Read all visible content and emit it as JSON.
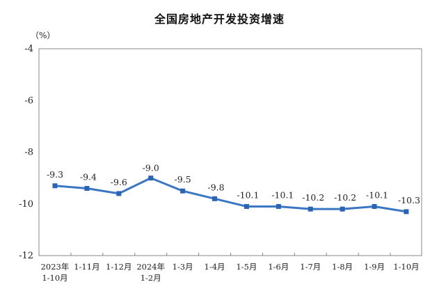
{
  "chart_data": {
    "type": "line",
    "title": "全国房地产开发投资增速",
    "ylabel": "（%）",
    "xlabel": "",
    "categories": [
      "2023年\n1-10月",
      "1-11月",
      "1-12月",
      "2024年\n1-2月",
      "1-3月",
      "1-4月",
      "1-5月",
      "1-6月",
      "1-7月",
      "1-8月",
      "1-9月",
      "1-10月"
    ],
    "series": [
      {
        "values": [
          -9.3,
          -9.4,
          -9.6,
          -9.0,
          -9.5,
          -9.8,
          -10.1,
          -10.1,
          -10.2,
          -10.2,
          -10.1,
          -10.3
        ],
        "data_labels": [
          "-9.3",
          "-9.4",
          "-9.6",
          "-9.0",
          "-9.5",
          "-9.8",
          "-10.1",
          "-10.1",
          "-10.2",
          "-10.2",
          "-10.1",
          "-10.3"
        ]
      }
    ],
    "ylim": [
      -12,
      -4
    ],
    "yticks": [
      -4,
      -6,
      -8,
      -10,
      -12
    ],
    "ytick_labels": [
      "-4",
      "-6",
      "-8",
      "-10",
      "-12"
    ],
    "grid": false,
    "legend": "none",
    "colors": {
      "line": "#3a76c4",
      "marker": "#2c64b4",
      "axis": "#7f7f7f"
    }
  }
}
